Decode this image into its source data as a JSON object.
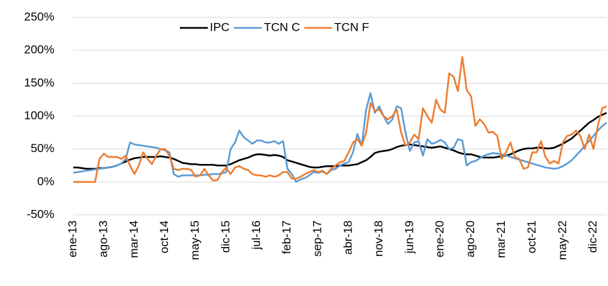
{
  "chart_data": {
    "type": "line",
    "categories": [
      "ene-13",
      null,
      null,
      null,
      null,
      null,
      null,
      "ago-13",
      null,
      null,
      null,
      null,
      null,
      null,
      "mar-14",
      null,
      null,
      null,
      null,
      null,
      null,
      "oct-14",
      null,
      null,
      null,
      null,
      null,
      null,
      "may-15",
      null,
      null,
      null,
      null,
      null,
      null,
      "dic-15",
      null,
      null,
      null,
      null,
      null,
      null,
      "jul-16",
      null,
      null,
      null,
      null,
      null,
      null,
      "feb-17",
      null,
      null,
      null,
      null,
      null,
      null,
      "sep-17",
      null,
      null,
      null,
      null,
      null,
      null,
      "abr-18",
      null,
      null,
      null,
      null,
      null,
      null,
      "nov-18",
      null,
      null,
      null,
      null,
      null,
      null,
      "jun-19",
      null,
      null,
      null,
      null,
      null,
      null,
      "ene-20",
      null,
      null,
      null,
      null,
      null,
      null,
      "ago-20",
      null,
      null,
      null,
      null,
      null,
      null,
      "mar-21",
      null,
      null,
      null,
      null,
      null,
      null,
      "oct-21",
      null,
      null,
      null,
      null,
      null,
      null,
      "may-22",
      null,
      null,
      null,
      null,
      null,
      null,
      "dic-22",
      null,
      null,
      null
    ],
    "series": [
      {
        "name": "IPC",
        "color": "#000000",
        "values": [
          22,
          22,
          21,
          20,
          20,
          20,
          21,
          21,
          22,
          23,
          25,
          28,
          31,
          34,
          36,
          37,
          38,
          38,
          38,
          38,
          39,
          38,
          37,
          35,
          32,
          29,
          28,
          27,
          27,
          26,
          26,
          26,
          26,
          25,
          25,
          25,
          27,
          30,
          33,
          35,
          37,
          40,
          42,
          42,
          41,
          40,
          41,
          40,
          38,
          33,
          31,
          29,
          27,
          25,
          23,
          22,
          22,
          23,
          24,
          24,
          24,
          25,
          25,
          25,
          26,
          27,
          30,
          33,
          38,
          44,
          46,
          47,
          48,
          50,
          53,
          55,
          56,
          57,
          56,
          55,
          54,
          53,
          52,
          53,
          54,
          52,
          50,
          48,
          45,
          43,
          42,
          42,
          40,
          38,
          37,
          37,
          37,
          38,
          39,
          40,
          42,
          45,
          48,
          50,
          51,
          51,
          52,
          52,
          51,
          51,
          52,
          55,
          58,
          62,
          66,
          72,
          78,
          84,
          90,
          94,
          99,
          102,
          105
        ]
      },
      {
        "name": "TCN C",
        "color": "#5b9bd5",
        "values": [
          14,
          15,
          16,
          17,
          18,
          19,
          20,
          21,
          22,
          23,
          25,
          28,
          35,
          60,
          57,
          56,
          55,
          54,
          53,
          52,
          50,
          48,
          45,
          12,
          8,
          10,
          10,
          10,
          10,
          10,
          11,
          11,
          12,
          12,
          13,
          15,
          50,
          60,
          78,
          68,
          63,
          58,
          63,
          63,
          60,
          60,
          62,
          58,
          62,
          20,
          12,
          0,
          4,
          6,
          10,
          15,
          14,
          16,
          12,
          18,
          20,
          25,
          28,
          30,
          45,
          73,
          55,
          110,
          135,
          105,
          115,
          100,
          88,
          95,
          115,
          112,
          75,
          47,
          60,
          62,
          40,
          65,
          58,
          60,
          64,
          60,
          50,
          52,
          65,
          63,
          25,
          30,
          32,
          36,
          40,
          42,
          44,
          43,
          42,
          40,
          38,
          36,
          34,
          32,
          30,
          28,
          26,
          24,
          22,
          21,
          20,
          21,
          24,
          28,
          33,
          40,
          47,
          55,
          62,
          70,
          78,
          85,
          90
        ]
      },
      {
        "name": "TCN F",
        "color": "#ed7d31",
        "values": [
          0,
          0,
          0,
          0,
          0,
          0,
          35,
          43,
          38,
          38,
          38,
          35,
          40,
          25,
          12,
          25,
          45,
          35,
          27,
          40,
          50,
          50,
          40,
          20,
          18,
          20,
          20,
          18,
          8,
          10,
          20,
          10,
          2,
          3,
          15,
          22,
          12,
          22,
          24,
          20,
          18,
          12,
          10,
          10,
          8,
          10,
          8,
          10,
          15,
          15,
          5,
          5,
          8,
          12,
          15,
          18,
          15,
          17,
          12,
          20,
          25,
          30,
          32,
          45,
          60,
          65,
          55,
          75,
          120,
          108,
          110,
          100,
          95,
          100,
          110,
          75,
          55,
          60,
          72,
          65,
          112,
          100,
          90,
          125,
          110,
          105,
          165,
          160,
          138,
          190,
          140,
          130,
          85,
          95,
          88,
          75,
          76,
          70,
          35,
          45,
          60,
          38,
          35,
          20,
          22,
          45,
          45,
          62,
          38,
          28,
          32,
          28,
          60,
          70,
          72,
          78,
          70,
          50,
          72,
          50,
          85,
          112,
          115
        ]
      }
    ],
    "ylim": [
      -50,
      250
    ],
    "yticks": [
      {
        "value": -50,
        "label": "-50%"
      },
      {
        "value": 0,
        "label": "0%"
      },
      {
        "value": 50,
        "label": "50%"
      },
      {
        "value": 100,
        "label": "100%"
      },
      {
        "value": 150,
        "label": "150%"
      },
      {
        "value": 200,
        "label": "200%"
      },
      {
        "value": 250,
        "label": "250%"
      }
    ],
    "grid": true,
    "legend": "top"
  }
}
